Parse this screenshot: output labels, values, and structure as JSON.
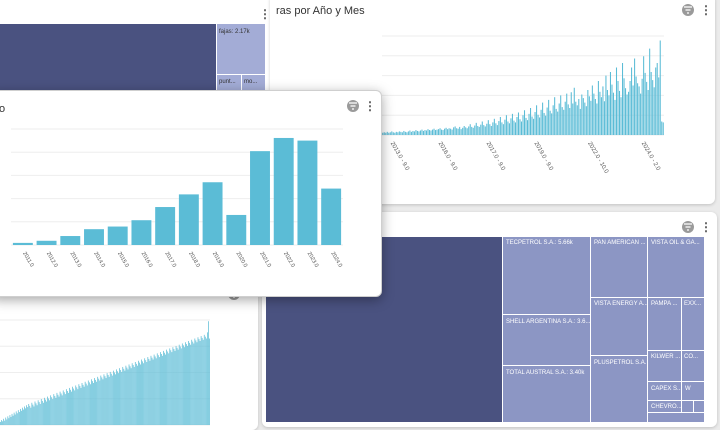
{
  "colors": {
    "bar": "#5bbcd6",
    "treemap_dark": "#4a5280",
    "treemap_mid": "#8c96c4",
    "treemap_light": "#a3acd6",
    "grid": "#eeeeee"
  },
  "icons": {
    "filter": "filter-icon",
    "menu": "kebab-menu-icon"
  },
  "menu_glyph": "⋮",
  "cards": {
    "treemap_top": {
      "labels": [
        "fajas: 2.17k",
        "punt...",
        "mo..."
      ]
    },
    "monthly_top": {
      "title": "ras por Año y Mes",
      "tick_labels": [
        "2013.0 - 9.0",
        "2016.0 - 9.0",
        "2017.0 - 9.0",
        "2019.0 - 9.0",
        "2022.0 - 10.0",
        "2024.0 - 2.0"
      ]
    },
    "yearly": {
      "title": "o"
    },
    "treemap_right": {
      "labels": [
        "TECPETROL S.A.: 5.66k",
        "PAN AMERICAN ...",
        "VISTA OIL & GA...",
        "SHELL ARGENTINA S.A.: 3.6...",
        "VISTA ENERGY A...",
        "PAMPA ...",
        "EXX...",
        "TOTAL AUSTRAL S.A.: 3.40k",
        "PLUSPETROL S.A...",
        "KILWER ...",
        "CO...",
        "CAPEX S...",
        "W",
        "CHEVRO..."
      ]
    },
    "monthly_bottom": {}
  },
  "chart_data": [
    {
      "type": "bar",
      "title": "",
      "categories": [
        "2011.0",
        "2012.0",
        "2013.0",
        "2014.0",
        "2015.0",
        "2016.0",
        "2017.0",
        "2018.0",
        "2019.0",
        "2020.0",
        "2021.0",
        "2022.0",
        "2023.0",
        "2024.0"
      ],
      "values": [
        4,
        8,
        17,
        30,
        35,
        47,
        72,
        96,
        119,
        57,
        178,
        203,
        198,
        107
      ],
      "ylim": [
        0,
        220
      ],
      "grid": true
    },
    {
      "type": "bar",
      "title": "",
      "x_range": [
        "2013.0 - 9.0",
        "2024.0 - 2.0"
      ],
      "values": [
        5,
        6,
        5,
        7,
        5,
        6,
        8,
        6,
        5,
        7,
        6,
        8,
        7,
        6,
        9,
        7,
        6,
        8,
        10,
        7,
        9,
        8,
        11,
        9,
        8,
        10,
        12,
        9,
        11,
        10,
        13,
        11,
        10,
        12,
        14,
        11,
        12,
        13,
        15,
        12,
        11,
        14,
        16,
        13,
        15,
        14,
        12,
        17,
        19,
        15,
        14,
        18,
        13,
        16,
        20,
        17,
        15,
        19,
        24,
        18,
        16,
        21,
        27,
        20,
        18,
        23,
        30,
        22,
        19,
        25,
        33,
        24,
        20,
        28,
        36,
        26,
        22,
        31,
        40,
        28,
        24,
        34,
        44,
        30,
        26,
        37,
        47,
        32,
        28,
        40,
        50,
        35,
        30,
        44,
        55,
        38,
        33,
        47,
        60,
        41,
        36,
        51,
        66,
        45,
        39,
        56,
        72,
        49,
        43,
        61,
        78,
        54,
        48,
        66,
        84,
        58,
        52,
        70,
        88,
        62,
        56,
        74,
        92,
        68,
        60,
        95,
        70,
        105,
        74,
        66,
        80,
        58,
        90,
        82,
        72,
        64,
        100,
        86,
        76,
        110,
        92,
        80,
        70,
        120,
        96,
        84,
        108,
        75,
        132,
        100,
        88,
        140,
        112,
        94,
        78,
        150,
        120,
        98,
        84,
        160,
        126,
        104,
        90,
        96,
        120,
        150,
        110,
        170,
        130,
        115,
        108,
        92,
        125,
        175,
        138,
        118,
        100,
        192,
        140,
        122,
        106,
        150,
        160,
        128,
        210,
        30,
        28
      ],
      "ylim": [
        0,
        220
      ],
      "grid": true
    },
    {
      "type": "bar",
      "title": "",
      "values": [
        5,
        8,
        6,
        10,
        7,
        12,
        9,
        14,
        11,
        16,
        13,
        18,
        15,
        20,
        17,
        22,
        19,
        24,
        21,
        26,
        23,
        28,
        25,
        30,
        27,
        32,
        29,
        34,
        31,
        28,
        36,
        33,
        30,
        38,
        35,
        32,
        40,
        37,
        34,
        42,
        39,
        36,
        44,
        41,
        38,
        46,
        43,
        40,
        48,
        45,
        42,
        50,
        47,
        44,
        52,
        49,
        46,
        54,
        51,
        48,
        56,
        53,
        50,
        58,
        55,
        52,
        60,
        57,
        54,
        62,
        59,
        56,
        64,
        61,
        58,
        66,
        63,
        60,
        68,
        65,
        62,
        70,
        67,
        64,
        72,
        69,
        66,
        74,
        71,
        68,
        76,
        73,
        70,
        78,
        75,
        72,
        80,
        77,
        74,
        82,
        79,
        76,
        84,
        81,
        78,
        86,
        83,
        80,
        88,
        85,
        82,
        90,
        87,
        84,
        92,
        89,
        86,
        94,
        91,
        88,
        96,
        93,
        90,
        98,
        95,
        92,
        100,
        97,
        94,
        102,
        99,
        96,
        104,
        101,
        98,
        106,
        103,
        100,
        108,
        105,
        102,
        110,
        107,
        104,
        112,
        109,
        106,
        114,
        111,
        108,
        116,
        113,
        110,
        118,
        115,
        112,
        120,
        117,
        114,
        122,
        119,
        116,
        124,
        121,
        118,
        126,
        123,
        120,
        128,
        125,
        122,
        130,
        127,
        124,
        132,
        129,
        126,
        134,
        131,
        128,
        136,
        133,
        130,
        138,
        135,
        132,
        140,
        137,
        134,
        142,
        139,
        136,
        144,
        141,
        138,
        146,
        143,
        140,
        150,
        168,
        140
      ],
      "ylim": [
        0,
        170
      ],
      "grid": true
    }
  ]
}
